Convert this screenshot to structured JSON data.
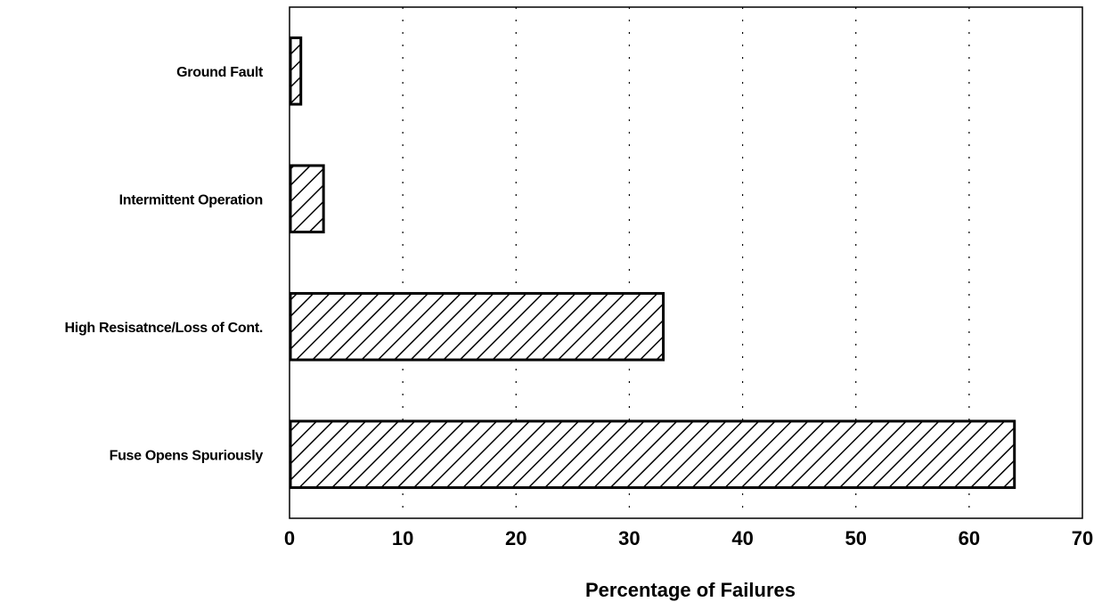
{
  "chart_data": {
    "type": "bar",
    "orientation": "horizontal",
    "title": "",
    "xlabel": "Percentage of Failures",
    "ylabel": "",
    "categories": [
      "Ground Fault",
      "Intermittent Operation",
      "High Resisatnce/Loss of Cont.",
      "Fuse Opens Spuriously"
    ],
    "values": [
      1,
      3,
      33,
      64
    ],
    "xlim": [
      0,
      70
    ],
    "xticks": [
      0,
      10,
      20,
      30,
      40,
      50,
      60,
      70
    ],
    "grid": "vertical dotted",
    "legend": "none",
    "bar_fill": "diagonal hatch",
    "colors": {
      "bar_stroke": "#000000",
      "background": "#ffffff"
    }
  }
}
